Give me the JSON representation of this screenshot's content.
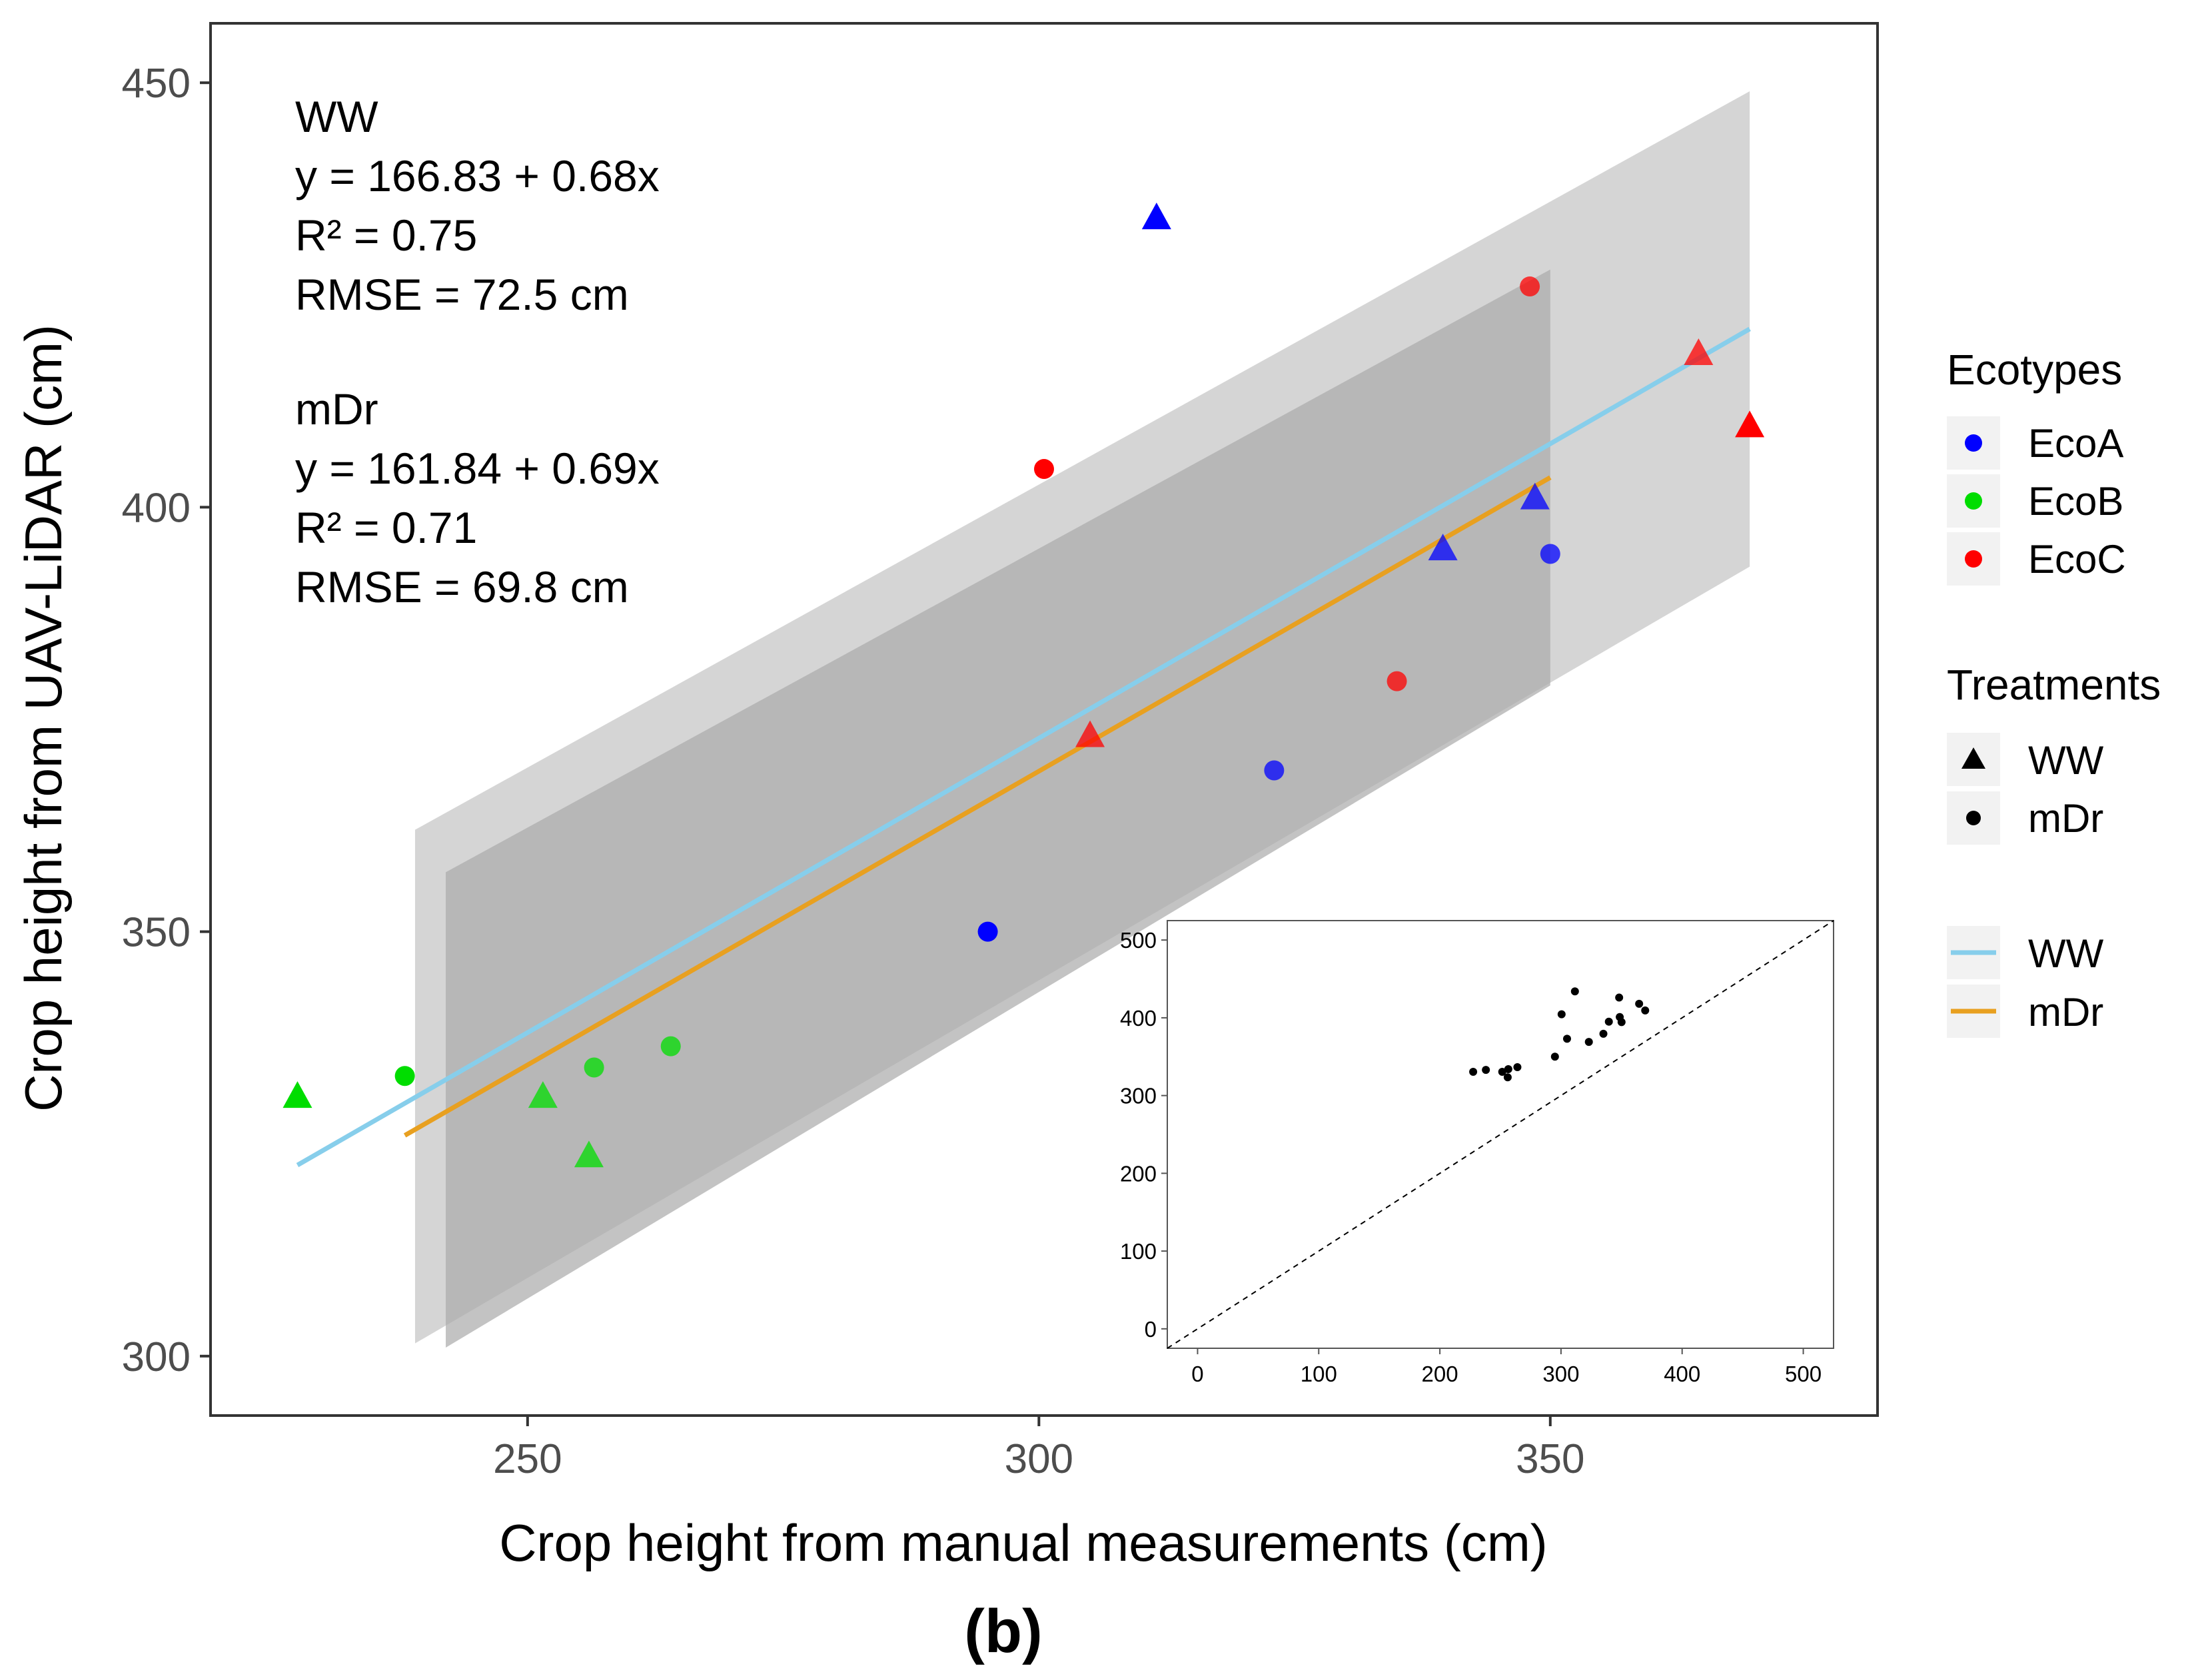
{
  "chart_data": [
    {
      "type": "scatter",
      "xlabel": "Crop height from manual measurements (cm)",
      "ylabel": "Crop height from UAV-LiDAR (cm)",
      "xlim": [
        219,
        382
      ],
      "ylim": [
        293,
        457
      ],
      "xticks": [
        250,
        300,
        350
      ],
      "yticks": [
        300,
        350,
        400,
        450
      ],
      "grid": false,
      "ecotype_colors": {
        "EcoA": "#0000ff",
        "EcoB": "#00dd00",
        "EcoC": "#ff0000"
      },
      "points": [
        {
          "x": 227.5,
          "y": 330.5,
          "ecotype": "EcoB",
          "treatment": "WW"
        },
        {
          "x": 251.5,
          "y": 330.5,
          "ecotype": "EcoB",
          "treatment": "WW"
        },
        {
          "x": 256,
          "y": 323.5,
          "ecotype": "EcoB",
          "treatment": "WW"
        },
        {
          "x": 238,
          "y": 333,
          "ecotype": "EcoB",
          "treatment": "mDr"
        },
        {
          "x": 256.5,
          "y": 334,
          "ecotype": "EcoB",
          "treatment": "mDr"
        },
        {
          "x": 264,
          "y": 336.5,
          "ecotype": "EcoB",
          "treatment": "mDr"
        },
        {
          "x": 311.5,
          "y": 434,
          "ecotype": "EcoA",
          "treatment": "WW"
        },
        {
          "x": 339.5,
          "y": 395,
          "ecotype": "EcoA",
          "treatment": "WW"
        },
        {
          "x": 348.5,
          "y": 401,
          "ecotype": "EcoA",
          "treatment": "WW"
        },
        {
          "x": 295,
          "y": 350,
          "ecotype": "EcoA",
          "treatment": "mDr"
        },
        {
          "x": 323,
          "y": 369,
          "ecotype": "EcoA",
          "treatment": "mDr"
        },
        {
          "x": 350,
          "y": 394.5,
          "ecotype": "EcoA",
          "treatment": "mDr"
        },
        {
          "x": 305,
          "y": 373,
          "ecotype": "EcoC",
          "treatment": "WW"
        },
        {
          "x": 364.5,
          "y": 418,
          "ecotype": "EcoC",
          "treatment": "WW"
        },
        {
          "x": 369.5,
          "y": 409.5,
          "ecotype": "EcoC",
          "treatment": "WW"
        },
        {
          "x": 300.5,
          "y": 404.5,
          "ecotype": "EcoC",
          "treatment": "mDr"
        },
        {
          "x": 335,
          "y": 379.5,
          "ecotype": "EcoC",
          "treatment": "mDr"
        },
        {
          "x": 348,
          "y": 426,
          "ecotype": "EcoC",
          "treatment": "mDr"
        }
      ],
      "fits": [
        {
          "name": "WW",
          "color": "#87ceeb",
          "x": [
            227.5,
            369.5
          ],
          "y": [
            322.5,
            421
          ],
          "ci_x": [
            239,
            369.5
          ],
          "ci_upper": [
            362,
            449
          ],
          "ci_lower": [
            301.5,
            393
          ]
        },
        {
          "name": "mDr",
          "color": "#e8a020",
          "x": [
            238,
            350
          ],
          "y": [
            326,
            403.5
          ],
          "ci_x": [
            242,
            350
          ],
          "ci_upper": [
            357,
            428
          ],
          "ci_lower": [
            301,
            379
          ]
        }
      ],
      "annotations": {
        "ww_block": [
          "WW",
          "y = 166.83 + 0.68x",
          "R² = 0.75",
          "RMSE = 72.5 cm"
        ],
        "mdr_block": [
          "mDr",
          "y = 161.84 + 0.69x",
          "R² = 0.71",
          "RMSE = 69.8 cm"
        ]
      },
      "legend": {
        "ecotypes_title": "Ecotypes",
        "ecotypes": [
          "EcoA",
          "EcoB",
          "EcoC"
        ],
        "treatments_title": "Treatments",
        "treatments": [
          "WW",
          "mDr"
        ],
        "lines": [
          "WW",
          "mDr"
        ]
      }
    },
    {
      "type": "scatter",
      "name": "inset",
      "xlim": [
        -25,
        525
      ],
      "ylim": [
        -25,
        525
      ],
      "xticks": [
        0,
        100,
        200,
        300,
        400,
        500
      ],
      "yticks": [
        0,
        100,
        200,
        300,
        400,
        500
      ],
      "reference_line": "1:1 dashed",
      "points": [
        [
          227.5,
          330.5
        ],
        [
          238,
          333
        ],
        [
          251.5,
          330.5
        ],
        [
          256,
          323.5
        ],
        [
          256.5,
          334
        ],
        [
          264,
          336.5
        ],
        [
          295,
          350
        ],
        [
          300.5,
          404.5
        ],
        [
          305,
          373
        ],
        [
          311.5,
          434
        ],
        [
          323,
          369
        ],
        [
          335,
          379.5
        ],
        [
          339.5,
          395
        ],
        [
          348,
          426
        ],
        [
          348.5,
          401
        ],
        [
          350,
          394.5
        ],
        [
          364.5,
          418
        ],
        [
          369.5,
          409.5
        ]
      ]
    }
  ],
  "caption": "(b)"
}
